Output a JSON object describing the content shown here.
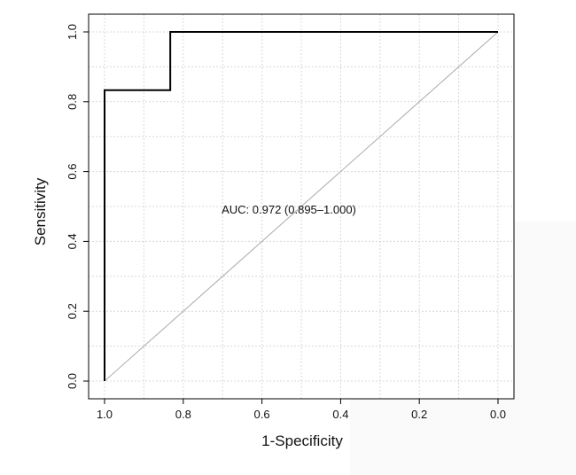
{
  "chart_data": {
    "type": "line",
    "title": "",
    "xlabel": "1-Specificity",
    "ylabel": "Sensitivity",
    "x_reversed": true,
    "xlim": [
      1.0,
      0.0
    ],
    "ylim": [
      0.0,
      1.0
    ],
    "x_ticks": [
      1.0,
      0.8,
      0.6,
      0.4,
      0.2,
      0.0
    ],
    "x_tick_labels": [
      "1.0",
      "0.8",
      "0.6",
      "0.4",
      "0.2",
      "0.0"
    ],
    "y_ticks": [
      0.0,
      0.2,
      0.4,
      0.6,
      0.8,
      1.0
    ],
    "y_tick_labels": [
      "0.0",
      "0.2",
      "0.4",
      "0.6",
      "0.8",
      "1.0"
    ],
    "grid": true,
    "series": [
      {
        "x": [
          1.0,
          1.0,
          0.833,
          0.833,
          0.0
        ],
        "y": [
          0.0,
          0.833,
          0.833,
          1.0,
          1.0
        ],
        "color": "#000000"
      },
      {
        "x": [
          1.0,
          0.0
        ],
        "y": [
          0.0,
          1.0
        ],
        "color": "#aaaaaa"
      }
    ],
    "annotation": {
      "text": "AUC: 0.972 (0.895–1.000)",
      "x": 0.5,
      "y": 0.48
    }
  }
}
